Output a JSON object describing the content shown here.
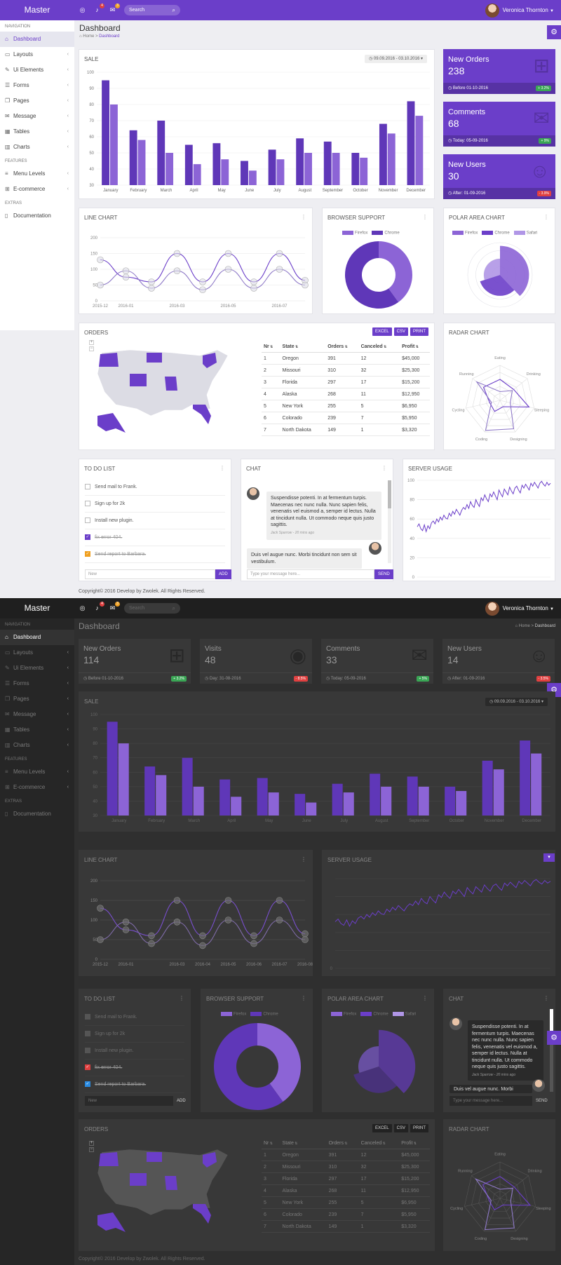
{
  "light": {
    "brand": "Master",
    "search_placeholder": "Search",
    "user_name": "Veronica Thornton",
    "notif_badge": "4",
    "msg_badge": "3",
    "sidebar": {
      "sections": [
        {
          "title": "Navigation",
          "items": [
            {
              "label": "Dashboard",
              "icon": "home-icon",
              "chevron": false,
              "active": true
            },
            {
              "label": "Layouts",
              "icon": "monitor-icon",
              "chevron": true
            },
            {
              "label": "Ui Elements",
              "icon": "pencil-icon",
              "chevron": true
            },
            {
              "label": "Forms",
              "icon": "list-icon",
              "chevron": true
            },
            {
              "label": "Pages",
              "icon": "pages-icon",
              "chevron": true
            },
            {
              "label": "Message",
              "icon": "envelope-icon",
              "chevron": true
            },
            {
              "label": "Tables",
              "icon": "table-icon",
              "chevron": true
            },
            {
              "label": "Charts",
              "icon": "bar-chart-icon",
              "chevron": true
            }
          ]
        },
        {
          "title": "Features",
          "items": [
            {
              "label": "Menu Levels",
              "icon": "sliders-icon",
              "chevron": true
            },
            {
              "label": "E-commerce",
              "icon": "cart-icon",
              "chevron": true
            }
          ]
        },
        {
          "title": "Extras",
          "items": [
            {
              "label": "Documentation",
              "icon": "document-icon",
              "chevron": false
            }
          ]
        }
      ]
    },
    "page_title": "Dashboard",
    "breadcrumb": {
      "home": "Home",
      "current": "Dashboard"
    },
    "sale": {
      "title": "SALE",
      "range": "09.09.2016 - 03.10.2016"
    },
    "stats": [
      {
        "label": "New Orders",
        "value": "238",
        "foot": "Before 01-10-2016",
        "pct": "+ 3.2%",
        "pct_color": "#3aa655",
        "icon": "cart-icon"
      },
      {
        "label": "Comments",
        "value": "68",
        "foot": "Today: 05-09-2016",
        "pct": "+ 9%",
        "pct_color": "#3aa655",
        "icon": "comment-icon"
      },
      {
        "label": "New Users",
        "value": "30",
        "foot": "After: 01-09-2016",
        "pct": "- 3.9%",
        "pct_color": "#e04040",
        "icon": "user-icon"
      }
    ],
    "line_chart_title": "LINE CHART",
    "browser_title": "BROWSER SUPPORT",
    "browser_legend": [
      "Firefox",
      "Chrome"
    ],
    "polar_title": "POLAR AREA CHART",
    "polar_legend": [
      "Firefox",
      "Chrome",
      "Safari"
    ],
    "orders_title": "ORDERS",
    "radar_title": "RADAR CHART",
    "export_buttons": [
      "EXCEL",
      "CSV",
      "PRINT"
    ],
    "todo_title": "TO DO LIST",
    "todo": [
      {
        "text": "Send mail to Frank.",
        "checked": false
      },
      {
        "text": "Sign up for 2k",
        "checked": false
      },
      {
        "text": "Install new plugin.",
        "checked": false
      },
      {
        "text": "fix error 404.",
        "checked": true,
        "color": "#6b3ec9"
      },
      {
        "text": "Send report to Barbara.",
        "checked": true,
        "color": "#f0a020"
      }
    ],
    "todo_input": "New",
    "todo_add": "ADD",
    "chat_title": "CHAT",
    "chat_msg1": "Suspendisse potenti. In at fermentum turpis. Maecenas nec nunc nulla. Nunc sapien felis, venenatis vel euismod a, semper id lectus. Nulla at tincidunt nulla. Ut commodo neque quis justo sagittis.",
    "chat_meta1": "Jack Sparrow - 20 mins ago",
    "chat_msg2": "Duis vel augue nunc. Morbi tincidunt non sem sit vestibulum.",
    "chat_input": "Type your message here...",
    "chat_send": "SEND",
    "server_title": "SERVER USAGE",
    "footer": "Copyright© 2016 Develop by Zwolek. All Rights Reserved."
  },
  "dark": {
    "stats": [
      {
        "label": "New Orders",
        "value": "114",
        "foot": "Before 01-10-2016",
        "pct": "+ 3.2%",
        "pct_color": "#3aa655",
        "icon": "cart-icon"
      },
      {
        "label": "Visits",
        "value": "48",
        "foot": "Day: 31-08-2016",
        "pct": "- 8.5%",
        "pct_color": "#e04040",
        "icon": "eye-icon"
      },
      {
        "label": "Comments",
        "value": "33",
        "foot": "Today: 05-09-2016",
        "pct": "+ 5%",
        "pct_color": "#3aa655",
        "icon": "comment-icon"
      },
      {
        "label": "New Users",
        "value": "14",
        "foot": "After: 01-09-2016",
        "pct": "- 3.5%",
        "pct_color": "#e04040",
        "icon": "user-icon"
      }
    ]
  },
  "orders_table": {
    "columns": [
      "Nr",
      "State",
      "Orders",
      "Canceled",
      "Profit"
    ],
    "rows": [
      [
        "1",
        "Oregon",
        "391",
        "12",
        "$45,000"
      ],
      [
        "2",
        "Missouri",
        "310",
        "32",
        "$25,300"
      ],
      [
        "3",
        "Florida",
        "297",
        "17",
        "$15,200"
      ],
      [
        "4",
        "Alaska",
        "268",
        "11",
        "$12,950"
      ],
      [
        "5",
        "New York",
        "255",
        "5",
        "$6,950"
      ],
      [
        "6",
        "Colorado",
        "239",
        "7",
        "$5,950"
      ],
      [
        "7",
        "North Dakota",
        "149",
        "1",
        "$3,320"
      ]
    ]
  },
  "chart_data": [
    {
      "id": "sale",
      "type": "bar",
      "title": "SALE",
      "categories": [
        "January",
        "February",
        "March",
        "April",
        "May",
        "June",
        "July",
        "August",
        "September",
        "October",
        "November",
        "December"
      ],
      "series": [
        {
          "values": [
            95,
            64,
            70,
            55,
            56,
            45,
            52,
            59,
            57,
            50,
            68,
            82
          ]
        },
        {
          "values": [
            80,
            58,
            50,
            43,
            46,
            39,
            46,
            50,
            50,
            47,
            62,
            73
          ]
        }
      ],
      "ylim": [
        30,
        100
      ],
      "yticks": [
        30,
        40,
        50,
        60,
        70,
        80,
        90,
        100
      ],
      "colors": [
        "#5f37b8",
        "#8c64d6"
      ]
    },
    {
      "id": "line_light",
      "type": "line",
      "title": "LINE CHART",
      "x": [
        "2015-12",
        "2016-01",
        "2016-02",
        "2016-03",
        "2016-04",
        "2016-05",
        "2016-06",
        "2016-07",
        "2016-08"
      ],
      "xticklabels": [
        "2015-12",
        "2016-01",
        "",
        "2016-03",
        "",
        "2016-05",
        "",
        "2016-07",
        ""
      ],
      "series": [
        {
          "values": [
            130,
            75,
            60,
            150,
            60,
            150,
            60,
            150,
            65
          ]
        },
        {
          "values": [
            50,
            95,
            40,
            95,
            35,
            100,
            40,
            100,
            50
          ]
        }
      ],
      "ylim": [
        0,
        200
      ],
      "yticks": [
        0,
        50,
        100,
        150,
        200
      ]
    },
    {
      "id": "line_dark",
      "type": "line",
      "title": "LINE CHART",
      "x": [
        "2015-12",
        "2016-01",
        "2016-02",
        "2016-03",
        "2016-04",
        "2016-05",
        "2016-06",
        "2016-07",
        "2016-08"
      ],
      "xticklabels": [
        "2015-12",
        "2016-01",
        "",
        "2016-03",
        "2016-04",
        "2016-05",
        "2016-06",
        "2016-07",
        "2016-08"
      ],
      "series": [
        {
          "values": [
            130,
            75,
            60,
            150,
            60,
            150,
            60,
            150,
            65
          ]
        },
        {
          "values": [
            50,
            95,
            40,
            95,
            35,
            100,
            40,
            100,
            50
          ]
        }
      ],
      "ylim": [
        0,
        200
      ],
      "yticks": [
        0,
        50,
        100,
        150,
        200
      ]
    },
    {
      "id": "browser",
      "type": "pie",
      "title": "BROWSER SUPPORT",
      "labels": [
        "Firefox",
        "Chrome"
      ],
      "values": [
        40,
        60
      ],
      "colors": [
        "#8c64d6",
        "#5f37b8"
      ]
    },
    {
      "id": "polar",
      "type": "pie",
      "title": "POLAR AREA CHART",
      "labels": [
        "Firefox",
        "Chrome",
        "Safari"
      ],
      "values": [
        38,
        32,
        30
      ],
      "radii": [
        0.9,
        0.65,
        0.5
      ],
      "colors": [
        "#8c64d6",
        "#6b3ec9",
        "#b096e6"
      ]
    },
    {
      "id": "radar",
      "type": "radar",
      "title": "RADAR CHART",
      "axes": [
        "Eating",
        "Drinking",
        "Sleeping",
        "Designing",
        "Coding",
        "Cycling",
        "Running"
      ],
      "series": [
        {
          "values": [
            0.6,
            0.5,
            0.85,
            0.2,
            0.35,
            0.3,
            0.6
          ]
        },
        {
          "values": [
            0.25,
            0.45,
            0.3,
            0.9,
            0.95,
            0.25,
            0.85
          ]
        }
      ]
    },
    {
      "id": "server",
      "type": "line",
      "title": "SERVER USAGE",
      "yticks": [
        0,
        20,
        40,
        60,
        80,
        100
      ],
      "ylim": [
        0,
        100
      ],
      "values": [
        52,
        55,
        50,
        48,
        54,
        47,
        53,
        50,
        56,
        58,
        55,
        60,
        57,
        62,
        59,
        64,
        61,
        60,
        66,
        63,
        68,
        65,
        70,
        67,
        64,
        69,
        72,
        70,
        75,
        71,
        78,
        74,
        72,
        80,
        76,
        73,
        82,
        79,
        85,
        81,
        78,
        86,
        83,
        88,
        84,
        80,
        90,
        86,
        83,
        91,
        88,
        85,
        93,
        89,
        86,
        92,
        94,
        90,
        87,
        95,
        92,
        96,
        93,
        90,
        97,
        94,
        98,
        95,
        92,
        97,
        99,
        96,
        94,
        98,
        95,
        97
      ]
    }
  ]
}
